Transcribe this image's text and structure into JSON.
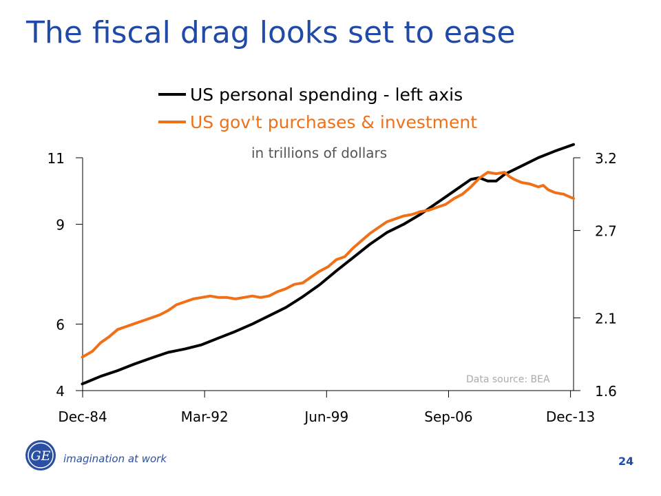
{
  "slide": {
    "title": "The fiscal drag looks set to ease",
    "tagline": "imagination at work",
    "page_number": "24",
    "logo_text": "GE"
  },
  "colors": {
    "title": "#1f4aa8",
    "series_spending": "#000000",
    "series_gov": "#f07018"
  },
  "chart_data": {
    "type": "line",
    "subtitle": "in trillions of dollars",
    "annotation": "Data source: BEA",
    "x_tick_labels": [
      "Dec-84",
      "Mar-92",
      "Jun-99",
      "Sep-06",
      "Dec-13"
    ],
    "x_ticks_year": [
      1984.92,
      1992.17,
      1999.42,
      2006.67,
      2013.92
    ],
    "xlim": [
      1984.92,
      2014.1
    ],
    "left_axis": {
      "ylim": [
        4,
        11
      ],
      "ticks": [
        4,
        6,
        9,
        11
      ]
    },
    "right_axis": {
      "ylim": [
        1.6,
        3.2
      ],
      "ticks": [
        1.6,
        2.1,
        2.7,
        3.2
      ]
    },
    "legend_placement": "top-center",
    "series": [
      {
        "name": "US personal spending - left axis",
        "axis": "left",
        "x": [
          1984.9,
          1986,
          1987,
          1988,
          1989,
          1990,
          1991,
          1992,
          1993,
          1994,
          1995,
          1996,
          1997,
          1998,
          1999,
          2000,
          2001,
          2002,
          2003,
          2004,
          2005,
          2006,
          2007,
          2008,
          2008.5,
          2009,
          2009.5,
          2010,
          2011,
          2012,
          2013,
          2014.1
        ],
        "values": [
          4.2,
          4.43,
          4.6,
          4.8,
          4.98,
          5.15,
          5.25,
          5.38,
          5.58,
          5.78,
          6.0,
          6.25,
          6.5,
          6.82,
          7.18,
          7.6,
          8.0,
          8.4,
          8.75,
          9.0,
          9.3,
          9.65,
          10.0,
          10.35,
          10.4,
          10.3,
          10.3,
          10.5,
          10.75,
          11.0,
          11.2,
          11.4
        ]
      },
      {
        "name": "US gov't purchases & investment",
        "axis": "right",
        "x": [
          1984.9,
          1985.5,
          1986,
          1986.5,
          1987,
          1987.5,
          1988,
          1988.5,
          1989,
          1989.5,
          1990,
          1990.5,
          1991,
          1991.5,
          1992,
          1992.5,
          1993,
          1993.5,
          1994,
          1994.5,
          1995,
          1995.5,
          1996,
          1996.5,
          1997,
          1997.5,
          1998,
          1998.5,
          1999,
          1999.5,
          2000,
          2000.5,
          2001,
          2001.5,
          2002,
          2002.5,
          2003,
          2003.5,
          2004,
          2004.5,
          2005,
          2005.5,
          2006,
          2006.5,
          2007,
          2007.5,
          2008,
          2008.5,
          2009,
          2009.5,
          2010,
          2010.3,
          2010.6,
          2011,
          2011.5,
          2012,
          2012.3,
          2012.6,
          2013,
          2013.5,
          2014.1
        ],
        "values": [
          1.83,
          1.87,
          1.93,
          1.97,
          2.02,
          2.04,
          2.06,
          2.08,
          2.1,
          2.12,
          2.15,
          2.19,
          2.21,
          2.23,
          2.24,
          2.25,
          2.24,
          2.24,
          2.23,
          2.24,
          2.25,
          2.24,
          2.25,
          2.28,
          2.3,
          2.33,
          2.34,
          2.38,
          2.42,
          2.45,
          2.5,
          2.52,
          2.58,
          2.63,
          2.68,
          2.72,
          2.76,
          2.78,
          2.8,
          2.81,
          2.83,
          2.84,
          2.86,
          2.88,
          2.92,
          2.95,
          3.0,
          3.06,
          3.1,
          3.09,
          3.1,
          3.07,
          3.05,
          3.03,
          3.02,
          3.0,
          3.01,
          2.98,
          2.96,
          2.95,
          2.92
        ]
      }
    ]
  }
}
